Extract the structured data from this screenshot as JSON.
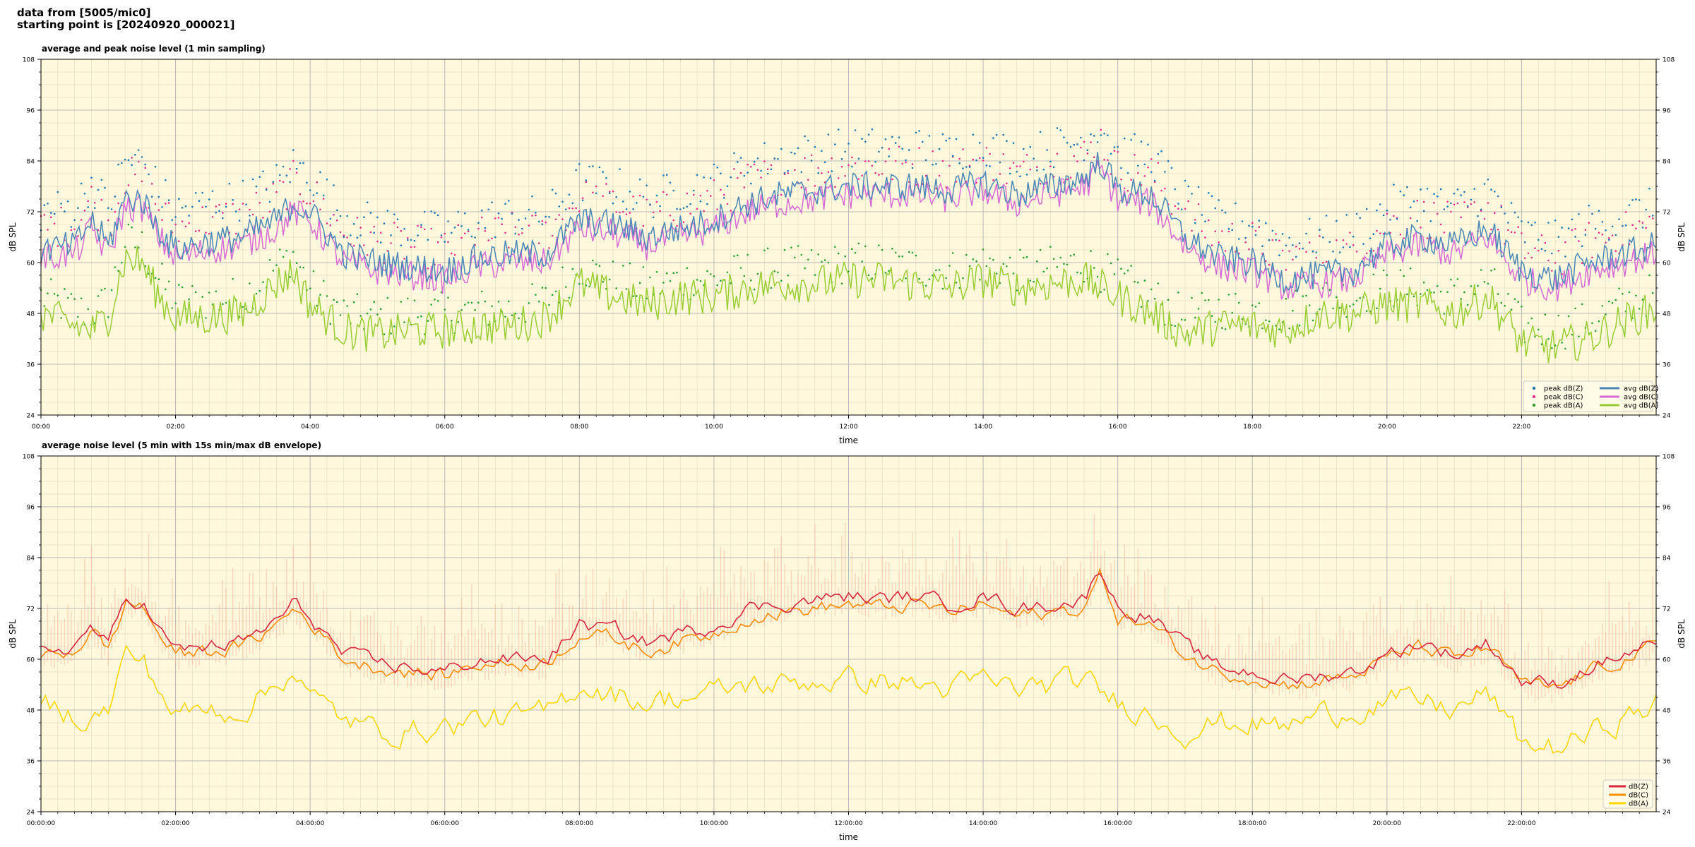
{
  "header": {
    "line1": "data from [5005/mic0]",
    "line2": "starting point is [20240920_000021]"
  },
  "chart_data": [
    {
      "type": "line",
      "title": "average and peak noise level (1 min sampling)",
      "xlabel": "time",
      "ylabel": "dB SPL",
      "xlim": [
        "00:00",
        "24:00"
      ],
      "ylim": [
        24,
        108
      ],
      "yticks": [
        24,
        36,
        48,
        60,
        72,
        84,
        96,
        108
      ],
      "xtick_labels": [
        "00:00",
        "02:00",
        "04:00",
        "06:00",
        "08:00",
        "10:00",
        "12:00",
        "14:00",
        "16:00",
        "18:00",
        "20:00",
        "22:00"
      ],
      "grid": true,
      "legend_position": "lower-right",
      "legend_cols": 2,
      "series": [
        {
          "name": "peak dB(Z)",
          "kind": "scatter",
          "color": "#1f77b4"
        },
        {
          "name": "peak dB(C)",
          "kind": "scatter",
          "color": "#e6308c"
        },
        {
          "name": "peak dB(A)",
          "kind": "scatter",
          "color": "#2ca02c"
        },
        {
          "name": "avg dB(Z)",
          "kind": "line",
          "color": "#4a86b8"
        },
        {
          "name": "avg dB(C)",
          "kind": "line",
          "color": "#d66ad6"
        },
        {
          "name": "avg dB(A)",
          "kind": "line",
          "color": "#9acd32"
        }
      ],
      "x_hours": [
        0,
        0.5,
        0.75,
        1,
        1.25,
        1.5,
        1.75,
        2,
        2.5,
        3,
        3.5,
        3.75,
        4,
        4.5,
        5,
        5.5,
        6,
        6.5,
        7,
        7.5,
        8,
        8.5,
        9,
        9.5,
        10,
        10.5,
        11,
        11.5,
        12,
        12.5,
        13,
        13.5,
        14,
        14.5,
        15,
        15.5,
        15.75,
        16,
        16.5,
        17,
        17.5,
        18,
        18.5,
        19,
        19.5,
        20,
        20.5,
        21,
        21.5,
        22,
        22.5,
        23,
        23.5,
        24
      ],
      "avg_z": [
        63,
        64,
        70,
        64,
        75,
        75,
        68,
        63,
        65,
        66,
        70,
        74,
        72,
        62,
        60,
        59,
        58,
        61,
        62,
        62,
        70,
        69,
        66,
        68,
        70,
        74,
        76,
        77,
        78,
        78,
        78,
        77,
        79,
        76,
        78,
        80,
        84,
        77,
        76,
        66,
        61,
        60,
        56,
        57,
        58,
        64,
        66,
        64,
        68,
        58,
        56,
        60,
        62,
        64
      ],
      "avg_c": [
        61,
        62,
        68,
        62,
        73,
        73,
        66,
        61,
        63,
        64,
        68,
        72,
        70,
        60,
        58,
        57,
        56,
        59,
        60,
        60,
        68,
        67,
        64,
        66,
        68,
        72,
        74,
        75,
        76,
        76,
        76,
        75,
        77,
        74,
        76,
        78,
        82,
        75,
        74,
        64,
        59,
        58,
        54,
        55,
        56,
        62,
        64,
        62,
        66,
        56,
        54,
        58,
        60,
        62
      ],
      "avg_a": [
        48,
        45,
        44,
        47,
        61,
        60,
        52,
        47,
        47,
        48,
        55,
        58,
        50,
        44,
        43,
        44,
        44,
        45,
        45,
        47,
        55,
        52,
        50,
        52,
        52,
        54,
        55,
        55,
        56,
        56,
        55,
        54,
        56,
        54,
        55,
        56,
        54,
        52,
        48,
        43,
        45,
        45,
        44,
        48,
        48,
        50,
        50,
        48,
        52,
        41,
        40,
        42,
        46,
        49
      ],
      "peak_offset_z": 6,
      "peak_offset_c": 4,
      "peak_offset_a": 1
    },
    {
      "type": "line",
      "title": "average noise level (5 min with 15s min/max dB envelope)",
      "xlabel": "time",
      "ylabel": "dB SPL",
      "xlim": [
        "00:00:00",
        "24:00:00"
      ],
      "ylim": [
        24,
        108
      ],
      "yticks": [
        24,
        36,
        48,
        60,
        72,
        84,
        96,
        108
      ],
      "xtick_labels": [
        "00:00:00",
        "02:00:00",
        "04:00:00",
        "06:00:00",
        "08:00:00",
        "10:00:00",
        "12:00:00",
        "14:00:00",
        "16:00:00",
        "18:00:00",
        "20:00:00",
        "22:00:00"
      ],
      "grid": true,
      "legend_position": "lower-right",
      "envelope_color": "#f4b8a0",
      "envelope_spread": 9,
      "series": [
        {
          "name": "dB(Z)",
          "color": "#d7263d"
        },
        {
          "name": "dB(C)",
          "color": "#ff8c00"
        },
        {
          "name": "dB(A)",
          "color": "#ffd700"
        }
      ],
      "x_hours": [
        0,
        0.5,
        0.75,
        1,
        1.25,
        1.5,
        1.75,
        2,
        2.5,
        3,
        3.5,
        3.75,
        4,
        4.5,
        5,
        5.5,
        6,
        6.5,
        7,
        7.5,
        8,
        8.5,
        9,
        9.5,
        10,
        10.5,
        11,
        11.5,
        12,
        12.5,
        13,
        13.5,
        14,
        14.5,
        15,
        15.5,
        15.75,
        16,
        16.5,
        17,
        17.5,
        18,
        18.5,
        19,
        19.5,
        20,
        20.5,
        21,
        21.5,
        22,
        22.5,
        23,
        23.5,
        24
      ],
      "z": [
        62,
        63,
        68,
        63,
        74,
        74,
        67,
        62,
        63,
        64,
        69,
        73,
        70,
        61,
        59,
        58,
        57,
        60,
        60,
        60,
        68,
        67,
        64,
        66,
        68,
        72,
        73,
        74,
        75,
        74,
        75,
        73,
        75,
        72,
        73,
        74,
        82,
        72,
        70,
        63,
        58,
        57,
        55,
        56,
        57,
        61,
        64,
        61,
        64,
        55,
        54,
        58,
        61,
        64
      ],
      "c": [
        61,
        62,
        67,
        62,
        73,
        73,
        66,
        61,
        62,
        63,
        68,
        72,
        69,
        60,
        58,
        57,
        56,
        59,
        59,
        59,
        66,
        65,
        62,
        64,
        66,
        70,
        71,
        72,
        73,
        72,
        73,
        71,
        73,
        70,
        71,
        72,
        80,
        70,
        68,
        61,
        57,
        56,
        54,
        55,
        56,
        60,
        63,
        60,
        63,
        54,
        53,
        57,
        60,
        63
      ],
      "a": [
        50,
        47,
        46,
        48,
        61,
        60,
        53,
        47,
        48,
        48,
        54,
        58,
        51,
        46,
        43,
        43,
        44,
        46,
        46,
        47,
        54,
        52,
        50,
        51,
        52,
        54,
        54,
        55,
        55,
        55,
        54,
        53,
        55,
        53,
        54,
        55,
        52,
        50,
        47,
        43,
        45,
        45,
        44,
        47,
        48,
        50,
        50,
        48,
        52,
        40,
        39,
        42,
        46,
        49
      ]
    }
  ]
}
